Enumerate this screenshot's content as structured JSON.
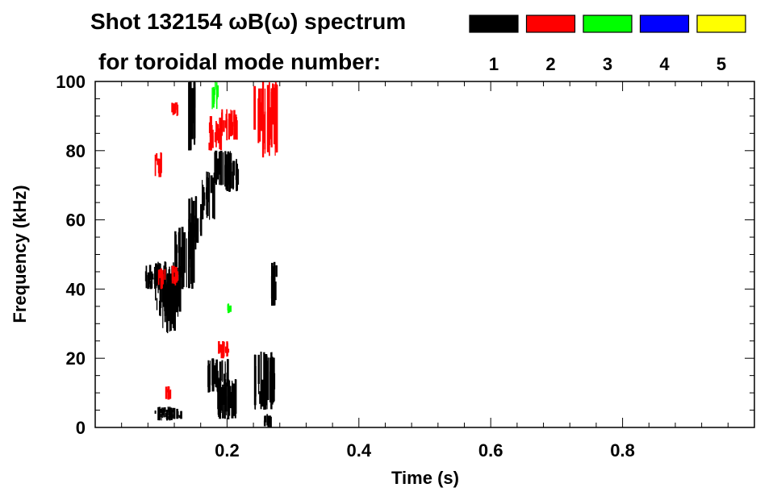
{
  "chart_data": {
    "type": "heatmap",
    "title_line1": "Shot 132154 ωB(ω) spectrum",
    "title_line2": "for toroidal mode number:",
    "xlabel": "Time (s)",
    "ylabel": "Frequency (kHz)",
    "xlim": [
      0,
      1.0
    ],
    "ylim": [
      0,
      100
    ],
    "x_ticks": [
      {
        "value": 0.2,
        "label": "0.2"
      },
      {
        "value": 0.4,
        "label": "0.4"
      },
      {
        "value": 0.6,
        "label": "0.6"
      },
      {
        "value": 0.8,
        "label": "0.8"
      }
    ],
    "y_ticks": [
      {
        "value": 0,
        "label": "0"
      },
      {
        "value": 20,
        "label": "20"
      },
      {
        "value": 40,
        "label": "40"
      },
      {
        "value": 60,
        "label": "60"
      },
      {
        "value": 80,
        "label": "80"
      },
      {
        "value": 100,
        "label": "100"
      }
    ],
    "legend": [
      {
        "label": "1",
        "color": "#000000"
      },
      {
        "label": "2",
        "color": "#ff0000"
      },
      {
        "label": "3",
        "color": "#00ff00"
      },
      {
        "label": "4",
        "color": "#0000ff"
      },
      {
        "label": "5",
        "color": "#ffff00"
      }
    ],
    "legend_placement": "top-right",
    "mode_regions": [
      {
        "mode": "1",
        "color": "#000000",
        "regions": [
          {
            "t": [
              0.075,
              0.095
            ],
            "f": [
              40,
              47
            ]
          },
          {
            "t": [
              0.09,
              0.13
            ],
            "f": [
              32,
              48
            ]
          },
          {
            "t": [
              0.095,
              0.12
            ],
            "f": [
              27,
              45
            ]
          },
          {
            "t": [
              0.12,
              0.15
            ],
            "f": [
              40,
              58
            ]
          },
          {
            "t": [
              0.14,
              0.16
            ],
            "f": [
              50,
              67
            ]
          },
          {
            "t": [
              0.16,
              0.18
            ],
            "f": [
              60,
              74
            ]
          },
          {
            "t": [
              0.18,
              0.205
            ],
            "f": [
              70,
              80
            ]
          },
          {
            "t": [
              0.195,
              0.215
            ],
            "f": [
              68,
              78
            ]
          },
          {
            "t": [
              0.17,
              0.2
            ],
            "f": [
              10,
              20
            ]
          },
          {
            "t": [
              0.185,
              0.215
            ],
            "f": [
              2,
              14
            ]
          },
          {
            "t": [
              0.09,
              0.13
            ],
            "f": [
              2,
              6
            ]
          },
          {
            "t": [
              0.24,
              0.27
            ],
            "f": [
              5,
              22
            ]
          },
          {
            "t": [
              0.255,
              0.265
            ],
            "f": [
              0,
              4
            ]
          },
          {
            "t": [
              0.265,
              0.275
            ],
            "f": [
              35,
              48
            ]
          },
          {
            "t": [
              0.14,
              0.15
            ],
            "f": [
              80,
              100
            ]
          }
        ]
      },
      {
        "mode": "2",
        "color": "#ff0000",
        "regions": [
          {
            "t": [
              0.095,
              0.105
            ],
            "f": [
              40,
              46
            ]
          },
          {
            "t": [
              0.105,
              0.115
            ],
            "f": [
              8,
              12
            ]
          },
          {
            "t": [
              0.09,
              0.1
            ],
            "f": [
              72,
              80
            ]
          },
          {
            "t": [
              0.115,
              0.125
            ],
            "f": [
              90,
              94
            ]
          },
          {
            "t": [
              0.17,
              0.19
            ],
            "f": [
              80,
              90
            ]
          },
          {
            "t": [
              0.19,
              0.215
            ],
            "f": [
              83,
              92
            ]
          },
          {
            "t": [
              0.24,
              0.275
            ],
            "f": [
              78,
              100
            ]
          },
          {
            "t": [
              0.185,
              0.2
            ],
            "f": [
              20,
              25
            ]
          },
          {
            "t": [
              0.115,
              0.125
            ],
            "f": [
              41,
              47
            ]
          }
        ]
      },
      {
        "mode": "3",
        "color": "#00ff00",
        "regions": [
          {
            "t": [
              0.175,
              0.185
            ],
            "f": [
              92,
              100
            ]
          },
          {
            "t": [
              0.2,
              0.205
            ],
            "f": [
              33,
              36
            ]
          }
        ]
      }
    ]
  }
}
